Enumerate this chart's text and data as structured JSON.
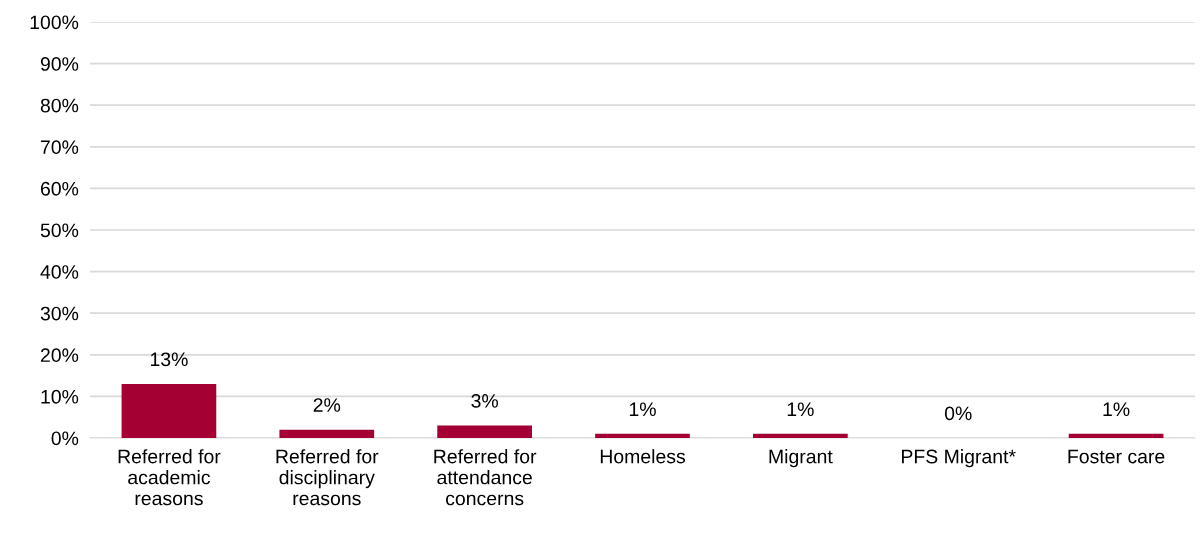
{
  "chart_data": {
    "type": "bar",
    "categories": [
      "Referred for\nacademic\nreasons",
      "Referred for\ndisciplinary\nreasons",
      "Referred for\nattendance\nconcerns",
      "Homeless",
      "Migrant",
      "PFS Migrant*",
      "Foster care"
    ],
    "values": [
      13,
      2,
      3,
      1,
      1,
      0,
      1
    ],
    "color": "#a50034",
    "data_labels": true,
    "value_labels": [
      "13%",
      "2%",
      "3%",
      "1%",
      "1%",
      "0%",
      "1%"
    ],
    "ylim": [
      0,
      100
    ],
    "yticks": [
      {
        "value": 0,
        "label": "0%"
      },
      {
        "value": 10,
        "label": "10%"
      },
      {
        "value": 20,
        "label": "20%"
      },
      {
        "value": 30,
        "label": "30%"
      },
      {
        "value": 40,
        "label": "40%"
      },
      {
        "value": 50,
        "label": "50%"
      },
      {
        "value": 60,
        "label": "60%"
      },
      {
        "value": 70,
        "label": "70%"
      },
      {
        "value": 80,
        "label": "80%"
      },
      {
        "value": 90,
        "label": "90%"
      },
      {
        "value": 100,
        "label": "100%"
      }
    ],
    "grid": "y"
  }
}
